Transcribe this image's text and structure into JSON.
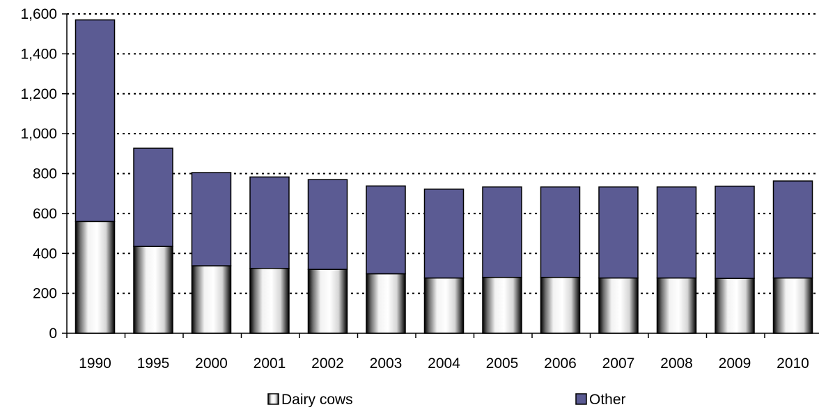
{
  "chart_data": {
    "type": "bar",
    "stacked": true,
    "categories": [
      "1990",
      "1995",
      "2000",
      "2001",
      "2002",
      "2003",
      "2004",
      "2005",
      "2006",
      "2007",
      "2008",
      "2009",
      "2010"
    ],
    "series": [
      {
        "name": "Dairy cows",
        "values": [
          560,
          435,
          338,
          325,
          320,
          298,
          277,
          280,
          280,
          277,
          277,
          275,
          277
        ],
        "color": "#ffffff"
      },
      {
        "name": "Other",
        "values": [
          1010,
          492,
          467,
          458,
          450,
          440,
          445,
          453,
          453,
          456,
          456,
          462,
          486
        ],
        "color": "#5b5b93"
      }
    ],
    "ylim": [
      0,
      1600
    ],
    "yticks": [
      0,
      200,
      400,
      600,
      800,
      1000,
      1200,
      1400,
      1600
    ],
    "ytick_labels": [
      "0",
      "200",
      "400",
      "600",
      "800",
      "1,000",
      "1,200",
      "1,400",
      "1,600"
    ],
    "grid": "dotted horizontal",
    "legend_position": "bottom"
  }
}
